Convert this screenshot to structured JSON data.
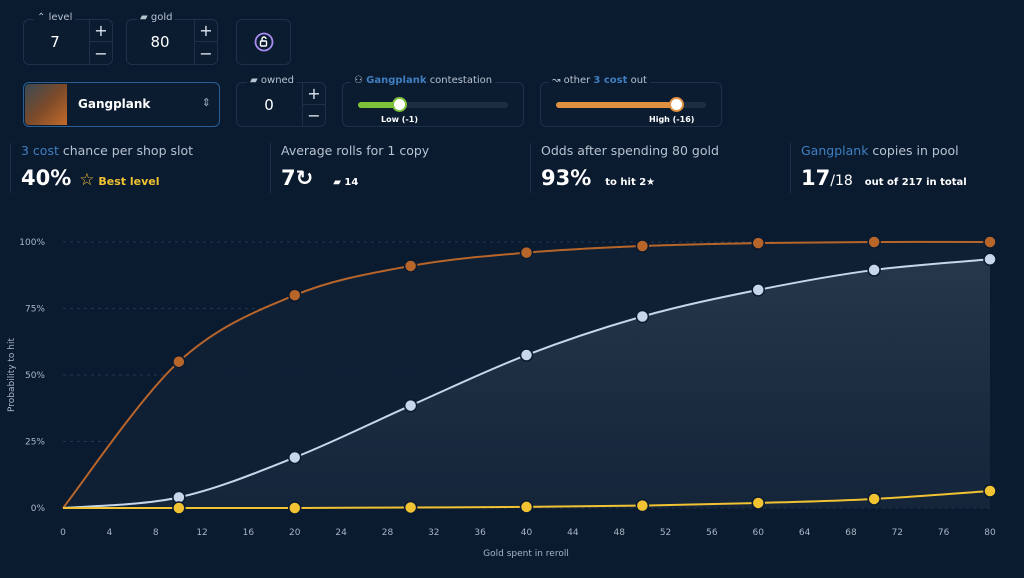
{
  "controls": {
    "level": {
      "label": "level",
      "value": "7",
      "icon": "chevrons-up-icon"
    },
    "gold": {
      "label": "gold",
      "value": "80",
      "icon": "coins-icon"
    },
    "lock_icon": "unlock-icon",
    "plus": "+",
    "minus": "−",
    "champion": {
      "name": "Gangplank"
    },
    "owned": {
      "label": "owned",
      "value": "0"
    },
    "contestation": {
      "champ": "Gangplank",
      "label": "contestation",
      "value_label": "Low (-1)",
      "level": 0.27,
      "color": "#7ec23a"
    },
    "other_out": {
      "pre": "other",
      "cost": "3 cost",
      "post": "out",
      "value_label": "High (-16)",
      "level": 0.8,
      "color": "#e0913f"
    }
  },
  "stats": [
    {
      "hl": "3 cost",
      "title": " chance per shop slot",
      "value": "40%",
      "extra": "Best level"
    },
    {
      "title": "Average rolls for 1 copy",
      "value": "7",
      "extra": "14"
    },
    {
      "title": "Odds after spending 80 gold",
      "value": "93%",
      "extra": "to hit 2★"
    },
    {
      "hl": "Gangplank",
      "title": " copies in pool",
      "value": "17",
      "sub": "/18",
      "extra": "out of 217 in total"
    }
  ],
  "chart_data": {
    "type": "line",
    "xlabel": "Gold spent in reroll",
    "ylabel": "Probability to hit",
    "xlim": [
      0,
      80
    ],
    "ylim": [
      0,
      100
    ],
    "xticks": [
      0,
      4,
      8,
      12,
      16,
      20,
      24,
      28,
      32,
      36,
      40,
      44,
      48,
      52,
      56,
      60,
      64,
      68,
      72,
      76,
      80
    ],
    "yticks": [
      "0%",
      "25%",
      "50%",
      "75%",
      "100%"
    ],
    "grid": true,
    "x": [
      0,
      10,
      20,
      30,
      40,
      50,
      60,
      70,
      80
    ],
    "series": [
      {
        "color": "#b8652a",
        "values": [
          0,
          55,
          80,
          91,
          96,
          98.5,
          99.6,
          100,
          100
        ]
      },
      {
        "color": "#c7d6e8",
        "values": [
          0,
          4,
          19,
          38.5,
          57.5,
          72,
          82,
          89.5,
          93.5
        ]
      },
      {
        "color": "#f1c232",
        "values": [
          0,
          0,
          0,
          0.2,
          0.4,
          0.9,
          1.9,
          3.4,
          6.4
        ]
      }
    ]
  }
}
